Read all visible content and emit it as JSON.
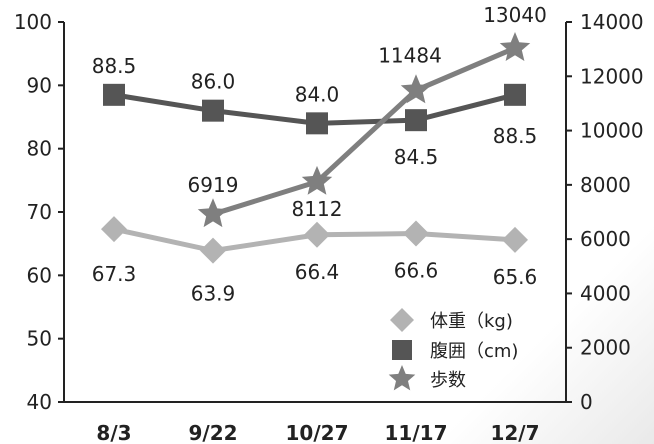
{
  "chart_data": {
    "type": "line",
    "categories": [
      "8/3",
      "9/22",
      "10/27",
      "11/17",
      "12/7"
    ],
    "y_left": {
      "ylim": [
        40,
        100
      ],
      "ticks": [
        40,
        50,
        60,
        70,
        80,
        90,
        100
      ]
    },
    "y_right": {
      "ylim": [
        0,
        14000
      ],
      "ticks": [
        0,
        2000,
        4000,
        6000,
        8000,
        10000,
        12000,
        14000
      ]
    },
    "series": [
      {
        "name": "体重（kg)",
        "axis": "left",
        "marker": "diamond",
        "color": "#b3b3b3",
        "values": [
          67.3,
          63.9,
          66.4,
          66.6,
          65.6
        ],
        "labels": [
          "67.3",
          "63.9",
          "66.4",
          "66.6",
          "65.6"
        ]
      },
      {
        "name": "腹囲（cm)",
        "axis": "left",
        "marker": "square",
        "color": "#555555",
        "values": [
          88.5,
          86.0,
          84.0,
          84.5,
          88.5
        ],
        "labels": [
          "88.5",
          "86.0",
          "84.0",
          "84.5",
          "88.5"
        ]
      },
      {
        "name": "歩数",
        "axis": "right",
        "marker": "star",
        "color": "#7f7f7f",
        "values": [
          null,
          6919,
          8112,
          11484,
          13040
        ],
        "labels": [
          null,
          "6919",
          "8112",
          "11484",
          "13040"
        ]
      }
    ],
    "legend_position": "bottom-right",
    "grid": false
  }
}
